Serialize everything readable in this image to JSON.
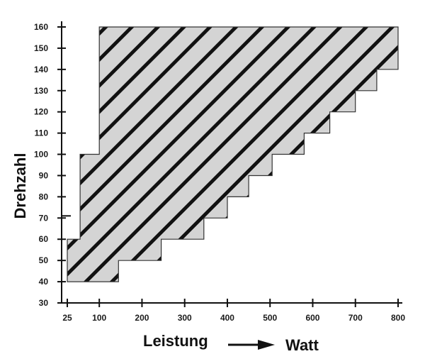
{
  "chart_data": {
    "type": "area",
    "xlabel": "Leistung",
    "xlabel_suffix": "Watt",
    "ylabel": "Drehzahl",
    "xlim": [
      15,
      815
    ],
    "ylim": [
      30,
      160
    ],
    "x_ticks": [
      25,
      100,
      200,
      300,
      400,
      500,
      600,
      700,
      800
    ],
    "y_ticks": [
      30,
      40,
      50,
      60,
      70,
      80,
      90,
      100,
      110,
      120,
      130,
      140,
      150,
      160
    ],
    "grid": false,
    "fill_color": "#d4d4d4",
    "hatch_color": "#111111",
    "outline_color": "#333333",
    "region": {
      "lower_boundary": [
        [
          145,
          40
        ],
        [
          145,
          50
        ],
        [
          245,
          50
        ],
        [
          245,
          60
        ],
        [
          345,
          60
        ],
        [
          345,
          70
        ],
        [
          400,
          70
        ],
        [
          400,
          80
        ],
        [
          450,
          80
        ],
        [
          450,
          90
        ],
        [
          505,
          90
        ],
        [
          505,
          100
        ],
        [
          580,
          100
        ],
        [
          580,
          110
        ],
        [
          640,
          110
        ],
        [
          640,
          120
        ],
        [
          700,
          120
        ],
        [
          700,
          130
        ],
        [
          750,
          130
        ],
        [
          750,
          140
        ],
        [
          800,
          140
        ],
        [
          800,
          160
        ]
      ],
      "upper_boundary": [
        [
          25,
          40
        ],
        [
          25,
          60
        ],
        [
          55,
          60
        ],
        [
          55,
          100
        ],
        [
          100,
          100
        ],
        [
          100,
          160
        ],
        [
          800,
          160
        ]
      ]
    }
  }
}
